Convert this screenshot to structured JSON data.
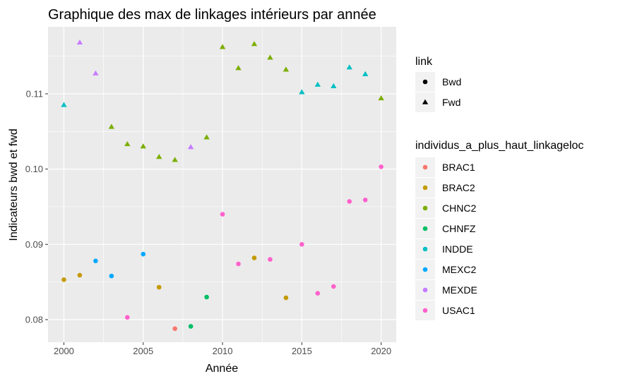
{
  "chart_data": {
    "type": "scatter",
    "title": "Graphique des max de linkages intérieurs par année",
    "xlabel": "Année",
    "ylabel": "Indicateurs bwd et fwd",
    "xlim": [
      1999.0,
      2020.95
    ],
    "ylim": [
      0.077,
      0.1189
    ],
    "x_ticks": [
      "2000",
      "2005",
      "2010",
      "2015",
      "2020"
    ],
    "y_ticks": [
      "0.08",
      "0.09",
      "0.10",
      "0.11"
    ],
    "grid": true,
    "legend_position": "right",
    "shape_legend": {
      "title": "link",
      "entries": [
        {
          "label": "Bwd",
          "shape": "circle"
        },
        {
          "label": "Fwd",
          "shape": "triangle"
        }
      ]
    },
    "color_legend": {
      "title": "individus_a_plus_haut_linkageloc",
      "entries": [
        {
          "label": "BRAC1",
          "color": "#F8766D"
        },
        {
          "label": "BRAC2",
          "color": "#C49A00"
        },
        {
          "label": "CHNC2",
          "color": "#7CAE00"
        },
        {
          "label": "CHNFZ",
          "color": "#00BE67"
        },
        {
          "label": "INDDE",
          "color": "#00BFC4"
        },
        {
          "label": "MEXC2",
          "color": "#00A9FF"
        },
        {
          "label": "MEXDE",
          "color": "#C77CFF"
        },
        {
          "label": "USAC1",
          "color": "#FF61CC"
        }
      ]
    },
    "points": [
      {
        "x": 2000,
        "y": 0.0853,
        "link": "Bwd",
        "group": "BRAC2"
      },
      {
        "x": 2001,
        "y": 0.0859,
        "link": "Bwd",
        "group": "BRAC2"
      },
      {
        "x": 2002,
        "y": 0.0878,
        "link": "Bwd",
        "group": "MEXC2"
      },
      {
        "x": 2003,
        "y": 0.0858,
        "link": "Bwd",
        "group": "MEXC2"
      },
      {
        "x": 2004,
        "y": 0.0803,
        "link": "Bwd",
        "group": "USAC1"
      },
      {
        "x": 2005,
        "y": 0.0887,
        "link": "Bwd",
        "group": "MEXC2"
      },
      {
        "x": 2006,
        "y": 0.0843,
        "link": "Bwd",
        "group": "BRAC2"
      },
      {
        "x": 2007,
        "y": 0.0788,
        "link": "Bwd",
        "group": "BRAC1"
      },
      {
        "x": 2008,
        "y": 0.0791,
        "link": "Bwd",
        "group": "CHNFZ"
      },
      {
        "x": 2009,
        "y": 0.083,
        "link": "Bwd",
        "group": "CHNFZ"
      },
      {
        "x": 2010,
        "y": 0.094,
        "link": "Bwd",
        "group": "USAC1"
      },
      {
        "x": 2011,
        "y": 0.0874,
        "link": "Bwd",
        "group": "USAC1"
      },
      {
        "x": 2012,
        "y": 0.0882,
        "link": "Bwd",
        "group": "BRAC2"
      },
      {
        "x": 2013,
        "y": 0.088,
        "link": "Bwd",
        "group": "USAC1"
      },
      {
        "x": 2014,
        "y": 0.0829,
        "link": "Bwd",
        "group": "BRAC2"
      },
      {
        "x": 2015,
        "y": 0.09,
        "link": "Bwd",
        "group": "USAC1"
      },
      {
        "x": 2016,
        "y": 0.0835,
        "link": "Bwd",
        "group": "USAC1"
      },
      {
        "x": 2017,
        "y": 0.0844,
        "link": "Bwd",
        "group": "USAC1"
      },
      {
        "x": 2018,
        "y": 0.0957,
        "link": "Bwd",
        "group": "USAC1"
      },
      {
        "x": 2019,
        "y": 0.0959,
        "link": "Bwd",
        "group": "USAC1"
      },
      {
        "x": 2020,
        "y": 0.1003,
        "link": "Bwd",
        "group": "USAC1"
      },
      {
        "x": 2000,
        "y": 0.1085,
        "link": "Fwd",
        "group": "INDDE"
      },
      {
        "x": 2001,
        "y": 0.1168,
        "link": "Fwd",
        "group": "MEXDE"
      },
      {
        "x": 2002,
        "y": 0.1127,
        "link": "Fwd",
        "group": "MEXDE"
      },
      {
        "x": 2003,
        "y": 0.1056,
        "link": "Fwd",
        "group": "CHNC2"
      },
      {
        "x": 2004,
        "y": 0.1033,
        "link": "Fwd",
        "group": "CHNC2"
      },
      {
        "x": 2005,
        "y": 0.103,
        "link": "Fwd",
        "group": "CHNC2"
      },
      {
        "x": 2006,
        "y": 0.1016,
        "link": "Fwd",
        "group": "CHNC2"
      },
      {
        "x": 2007,
        "y": 0.1012,
        "link": "Fwd",
        "group": "CHNC2"
      },
      {
        "x": 2008,
        "y": 0.1029,
        "link": "Fwd",
        "group": "MEXDE"
      },
      {
        "x": 2009,
        "y": 0.1042,
        "link": "Fwd",
        "group": "CHNC2"
      },
      {
        "x": 2010,
        "y": 0.1162,
        "link": "Fwd",
        "group": "CHNC2"
      },
      {
        "x": 2011,
        "y": 0.1134,
        "link": "Fwd",
        "group": "CHNC2"
      },
      {
        "x": 2012,
        "y": 0.1166,
        "link": "Fwd",
        "group": "CHNC2"
      },
      {
        "x": 2013,
        "y": 0.1148,
        "link": "Fwd",
        "group": "CHNC2"
      },
      {
        "x": 2014,
        "y": 0.1132,
        "link": "Fwd",
        "group": "CHNC2"
      },
      {
        "x": 2015,
        "y": 0.1102,
        "link": "Fwd",
        "group": "INDDE"
      },
      {
        "x": 2016,
        "y": 0.1112,
        "link": "Fwd",
        "group": "INDDE"
      },
      {
        "x": 2017,
        "y": 0.111,
        "link": "Fwd",
        "group": "INDDE"
      },
      {
        "x": 2018,
        "y": 0.1135,
        "link": "Fwd",
        "group": "INDDE"
      },
      {
        "x": 2019,
        "y": 0.1126,
        "link": "Fwd",
        "group": "INDDE"
      },
      {
        "x": 2020,
        "y": 0.1094,
        "link": "Fwd",
        "group": "CHNC2"
      }
    ]
  }
}
